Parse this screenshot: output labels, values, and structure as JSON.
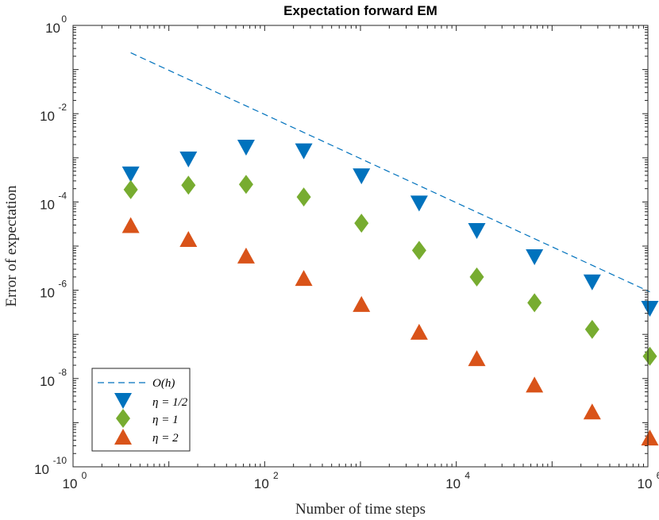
{
  "chart_data": {
    "type": "scatter",
    "title": "Expectation forward EM",
    "xlabel": "Number of time steps",
    "ylabel": "Error of expectation",
    "xscale": "log",
    "yscale": "log",
    "xlim": [
      1,
      1000000
    ],
    "ylim": [
      1e-10,
      1
    ],
    "x_ticks": [
      {
        "base": "10",
        "exp": "0",
        "value": 1
      },
      {
        "base": "10",
        "exp": "2",
        "value": 100
      },
      {
        "base": "10",
        "exp": "4",
        "value": 10000
      },
      {
        "base": "10",
        "exp": "6",
        "value": 1000000
      }
    ],
    "y_ticks": [
      {
        "base": "10",
        "exp": "0",
        "value": 1
      },
      {
        "base": "10",
        "exp": "-2",
        "value": 0.01
      },
      {
        "base": "10",
        "exp": "-4",
        "value": 0.0001
      },
      {
        "base": "10",
        "exp": "-6",
        "value": 1e-06
      },
      {
        "base": "10",
        "exp": "-8",
        "value": 1e-08
      },
      {
        "base": "10",
        "exp": "-10",
        "value": 1e-10
      }
    ],
    "x": [
      4,
      16,
      64,
      256,
      1024,
      4096,
      16384,
      65536,
      262144,
      1048576
    ],
    "series": [
      {
        "name": "η = 1/2",
        "legend_label": "η = 1/2",
        "marker": "triangle-down",
        "color": "#0072BD",
        "values": [
          0.00042,
          0.00092,
          0.0017,
          0.0014,
          0.00038,
          9.2e-05,
          2.2e-05,
          5.6e-06,
          1.5e-06,
          3.8e-07
        ]
      },
      {
        "name": "η = 1",
        "legend_label": "η = 1",
        "marker": "diamond",
        "color": "#77AC30",
        "values": [
          0.00019,
          0.00024,
          0.00025,
          0.00013,
          3.3e-05,
          8e-06,
          2e-06,
          5.2e-07,
          1.3e-07,
          3.2e-08
        ]
      },
      {
        "name": "η = 2",
        "legend_label": "η = 2",
        "marker": "triangle-up",
        "color": "#D95319",
        "values": [
          3e-05,
          1.45e-05,
          6.1e-06,
          1.9e-06,
          4.9e-07,
          1.15e-07,
          2.9e-08,
          7.3e-09,
          1.8e-09,
          4.6e-10
        ]
      }
    ],
    "reference_line": {
      "name": "O(h)",
      "legend_label": "O(h)",
      "style": "dashed",
      "color": "#0072BD",
      "x": [
        4,
        1048576
      ],
      "y": [
        0.24,
        9.2e-07
      ]
    },
    "legend_position": "bottom-left"
  }
}
